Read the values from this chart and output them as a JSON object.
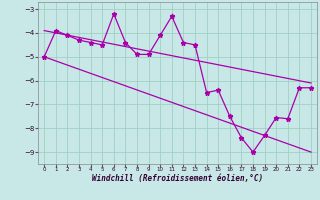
{
  "xlabel": "Windchill (Refroidissement éolien,°C)",
  "bg_color": "#c8e8e8",
  "line_color": "#aa00aa",
  "grid_color": "#99ccbb",
  "xlim": [
    -0.5,
    23.5
  ],
  "ylim": [
    -9.5,
    -2.7
  ],
  "yticks": [
    -9,
    -8,
    -7,
    -6,
    -5,
    -4,
    -3
  ],
  "xticks": [
    0,
    1,
    2,
    3,
    4,
    5,
    6,
    7,
    8,
    9,
    10,
    11,
    12,
    13,
    14,
    15,
    16,
    17,
    18,
    19,
    20,
    21,
    22,
    23
  ],
  "s1x": [
    0,
    1,
    2,
    3,
    4,
    5,
    6,
    7,
    8,
    9,
    10,
    11,
    12,
    13,
    14,
    15,
    16,
    17,
    18,
    19,
    20,
    21,
    22,
    23
  ],
  "s1y": [
    -5.0,
    -3.9,
    -4.1,
    -4.3,
    -4.4,
    -4.5,
    -3.2,
    -4.4,
    -4.9,
    -4.9,
    -4.1,
    -3.3,
    -4.4,
    -4.5,
    -6.5,
    -6.4,
    -7.5,
    -8.4,
    -9.0,
    -8.3,
    -7.55,
    -7.6,
    -6.3,
    -6.3
  ],
  "trend1_x": [
    0,
    23
  ],
  "trend1_y": [
    -3.9,
    -6.1
  ],
  "trend2_x": [
    0,
    23
  ],
  "trend2_y": [
    -5.0,
    -9.0
  ]
}
